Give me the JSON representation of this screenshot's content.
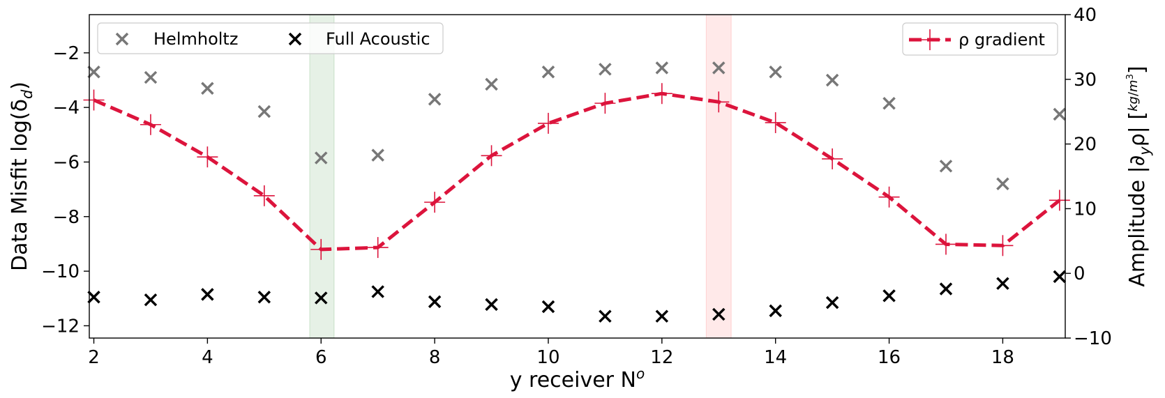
{
  "chart_data": {
    "type": "scatter",
    "xlabel_base": "y receiver N",
    "xlabel_sup": "o",
    "ylabel_left": "Data Misfit log(δ",
    "ylabel_left_sub": "d",
    "ylabel_left_end": ")",
    "ylabel_right": "Amplitude  |∂",
    "ylabel_right_sub": "y",
    "ylabel_right_mid": "ρ| [",
    "ylabel_right_frac_num": "kg",
    "ylabel_right_frac_den": "m",
    "ylabel_right_frac_den_sup": "3",
    "ylabel_right_end": "]",
    "xlim": [
      1.92,
      19.1
    ],
    "ylim_left": [
      -12.45,
      -0.6
    ],
    "ylim_right": [
      -10,
      40
    ],
    "x_ticks": [
      2,
      4,
      6,
      8,
      10,
      12,
      14,
      16,
      18
    ],
    "y_left_ticks": [
      "-2",
      "-4",
      "-6",
      "-8",
      "-10",
      "-12"
    ],
    "y_left_tick_values": [
      -2,
      -4,
      -6,
      -8,
      -10,
      -12
    ],
    "y_right_ticks": [
      "40",
      "30",
      "20",
      "10",
      "0",
      "-10"
    ],
    "y_right_tick_values": [
      40,
      30,
      20,
      10,
      0,
      -10
    ],
    "x": [
      2,
      3,
      4,
      5,
      6,
      7,
      8,
      9,
      10,
      11,
      12,
      13,
      14,
      15,
      16,
      17,
      18,
      19
    ],
    "series": [
      {
        "name": "Helmholtz",
        "axis": "left",
        "marker": "x",
        "color": "#777777",
        "values": [
          -2.7,
          -2.9,
          -3.3,
          -4.15,
          -5.85,
          -5.75,
          -3.7,
          -3.15,
          -2.7,
          -2.6,
          -2.55,
          -2.55,
          -2.7,
          -3.0,
          -3.85,
          -6.15,
          -6.8,
          -4.25
        ]
      },
      {
        "name": "Full Acoustic",
        "axis": "left",
        "marker": "x",
        "color": "#000000",
        "values": [
          -10.95,
          -11.05,
          -10.85,
          -10.95,
          -10.98,
          -10.75,
          -11.12,
          -11.22,
          -11.3,
          -11.65,
          -11.65,
          -11.58,
          -11.45,
          -11.15,
          -10.9,
          -10.65,
          -10.45,
          -10.2
        ]
      },
      {
        "name": "ρ gradient",
        "axis": "right",
        "marker": "+",
        "line": "dashed",
        "color": "#dc143c",
        "values": [
          26.8,
          23.0,
          18.0,
          12.0,
          3.7,
          4.0,
          11.0,
          18.2,
          23.2,
          26.3,
          27.8,
          26.5,
          23.3,
          17.7,
          11.8,
          4.5,
          4.3,
          11.3
        ]
      }
    ],
    "highlight_bands": [
      {
        "x_start": 5.8,
        "x_end": 6.23,
        "color": "#2e8b2e"
      },
      {
        "x_start": 12.78,
        "x_end": 13.22,
        "color": "#ff4d4d"
      }
    ],
    "legend_left": {
      "placement": "upper-left",
      "entries": [
        "Helmholtz",
        "Full Acoustic"
      ]
    },
    "legend_right": {
      "placement": "upper-right",
      "entries": [
        "ρ gradient"
      ]
    },
    "grid": false
  }
}
